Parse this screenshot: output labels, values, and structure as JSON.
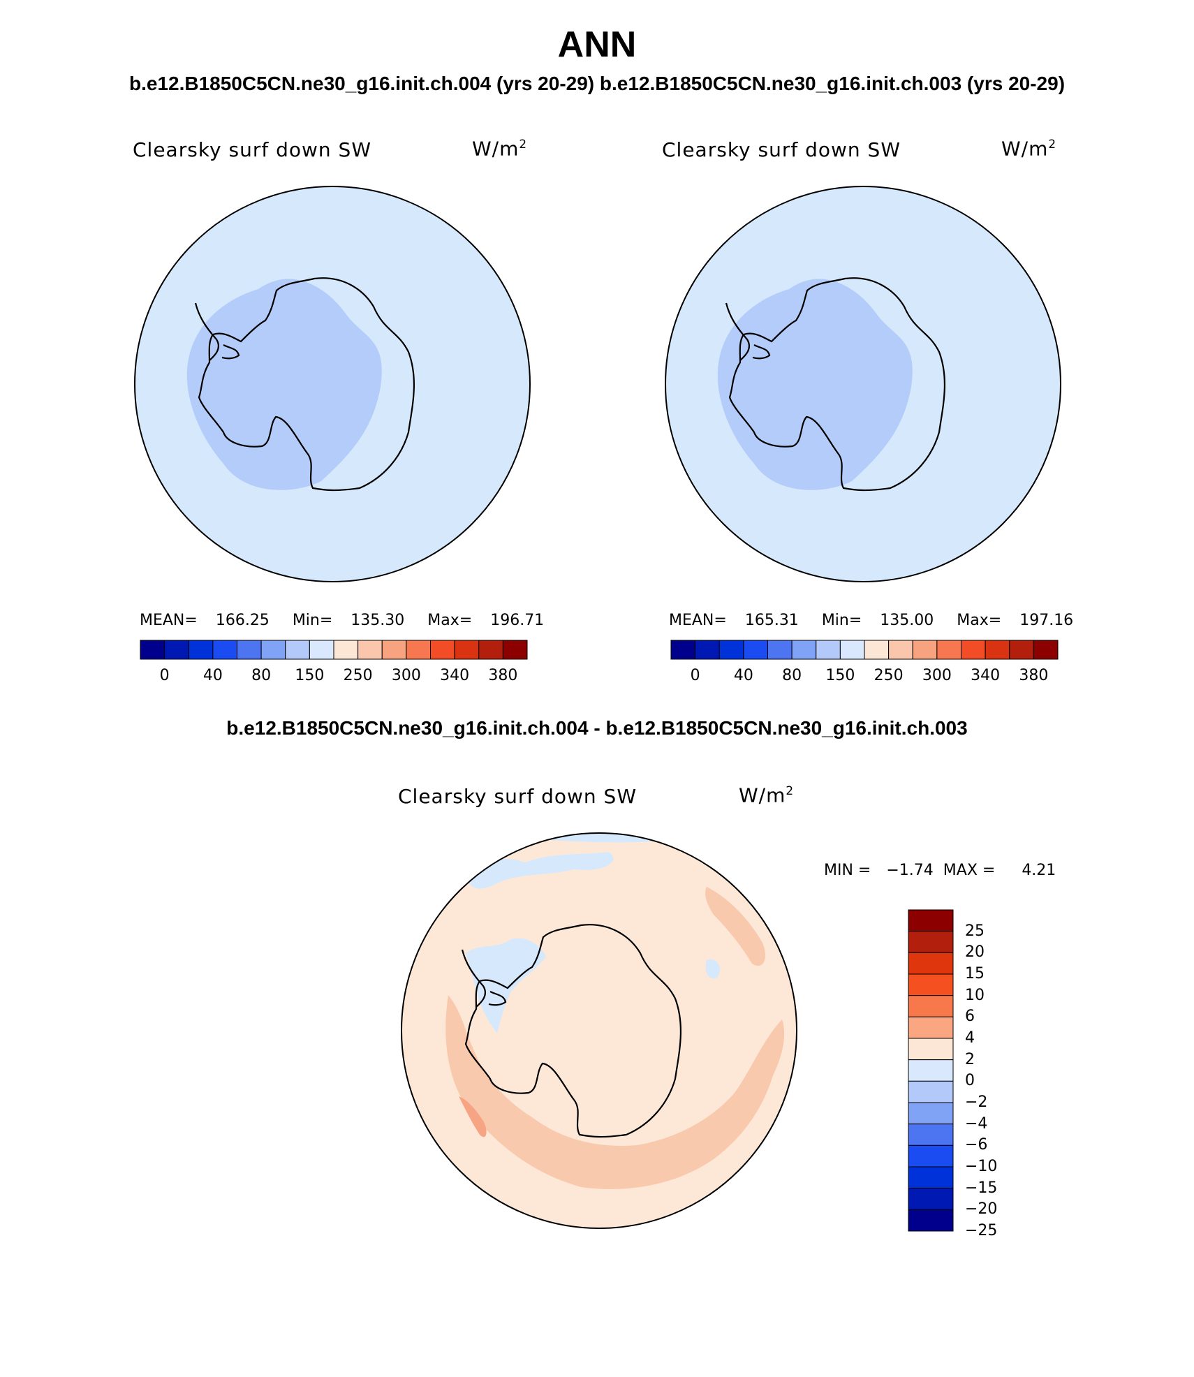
{
  "title": "ANN",
  "subtitle_left": "b.e12.B1850C5CN.ne30_g16.init.ch.004 (yrs 20-29)",
  "subtitle_right": "b.e12.B1850C5CN.ne30_g16.init.ch.003 (yrs 20-29)",
  "panels": [
    {
      "variable": "Clearsky surf down SW",
      "units_base": "W/m",
      "units_exp": "2",
      "mean_label": "MEAN=",
      "mean": "166.25",
      "min_label": "Min=",
      "min": "135.30",
      "max_label": "Max=",
      "max": "196.71"
    },
    {
      "variable": "Clearsky surf down SW",
      "units_base": "W/m",
      "units_exp": "2",
      "mean_label": "MEAN=",
      "mean": "165.31",
      "min_label": "Min=",
      "min": "135.00",
      "max_label": "Max=",
      "max": "197.16"
    }
  ],
  "colorbar": {
    "colors": [
      "#00008c",
      "#0019b2",
      "#0032d9",
      "#1a4cf2",
      "#4d75f2",
      "#80a3f5",
      "#b3c9fa",
      "#d9e8fc",
      "#fce6d6",
      "#fac7ad",
      "#f7a380",
      "#f77850",
      "#f24d26",
      "#d93312",
      "#b2200d",
      "#8c0000"
    ],
    "labels": [
      "0",
      "40",
      "80",
      "150",
      "250",
      "300",
      "340",
      "380"
    ]
  },
  "difference": {
    "title": "b.e12.B1850C5CN.ne30_g16.init.ch.004 - b.e12.B1850C5CN.ne30_g16.init.ch.003",
    "variable": "Clearsky surf down SW",
    "units_base": "W/m",
    "units_exp": "2",
    "min_label": "MIN =",
    "min": "−1.74",
    "max_label": "MAX =",
    "max": "4.21",
    "colorbar_colors_top_to_bottom": [
      "#8c0000",
      "#b2200d",
      "#e0360d",
      "#f5501f",
      "#f7784a",
      "#faa680",
      "#fce6d6",
      "#d9e8fc",
      "#b3c9fa",
      "#80a3f5",
      "#4d75f2",
      "#1a4cf2",
      "#0032d9",
      "#0019b2",
      "#00008c"
    ],
    "colorbar_labels_top_to_bottom": [
      "25",
      "20",
      "15",
      "10",
      "6",
      "4",
      "2",
      "0",
      "−2",
      "−4",
      "−6",
      "−10",
      "−15",
      "−20",
      "−25"
    ]
  },
  "map_colors": {
    "ocean_light": "#d6e8fc",
    "interior_blue": "#b3ccfa",
    "diff_base": "#fde8d8",
    "diff_pos": "#f9c9ad",
    "diff_pos_strong": "#f7a484",
    "diff_neg": "#d6e8fc"
  }
}
